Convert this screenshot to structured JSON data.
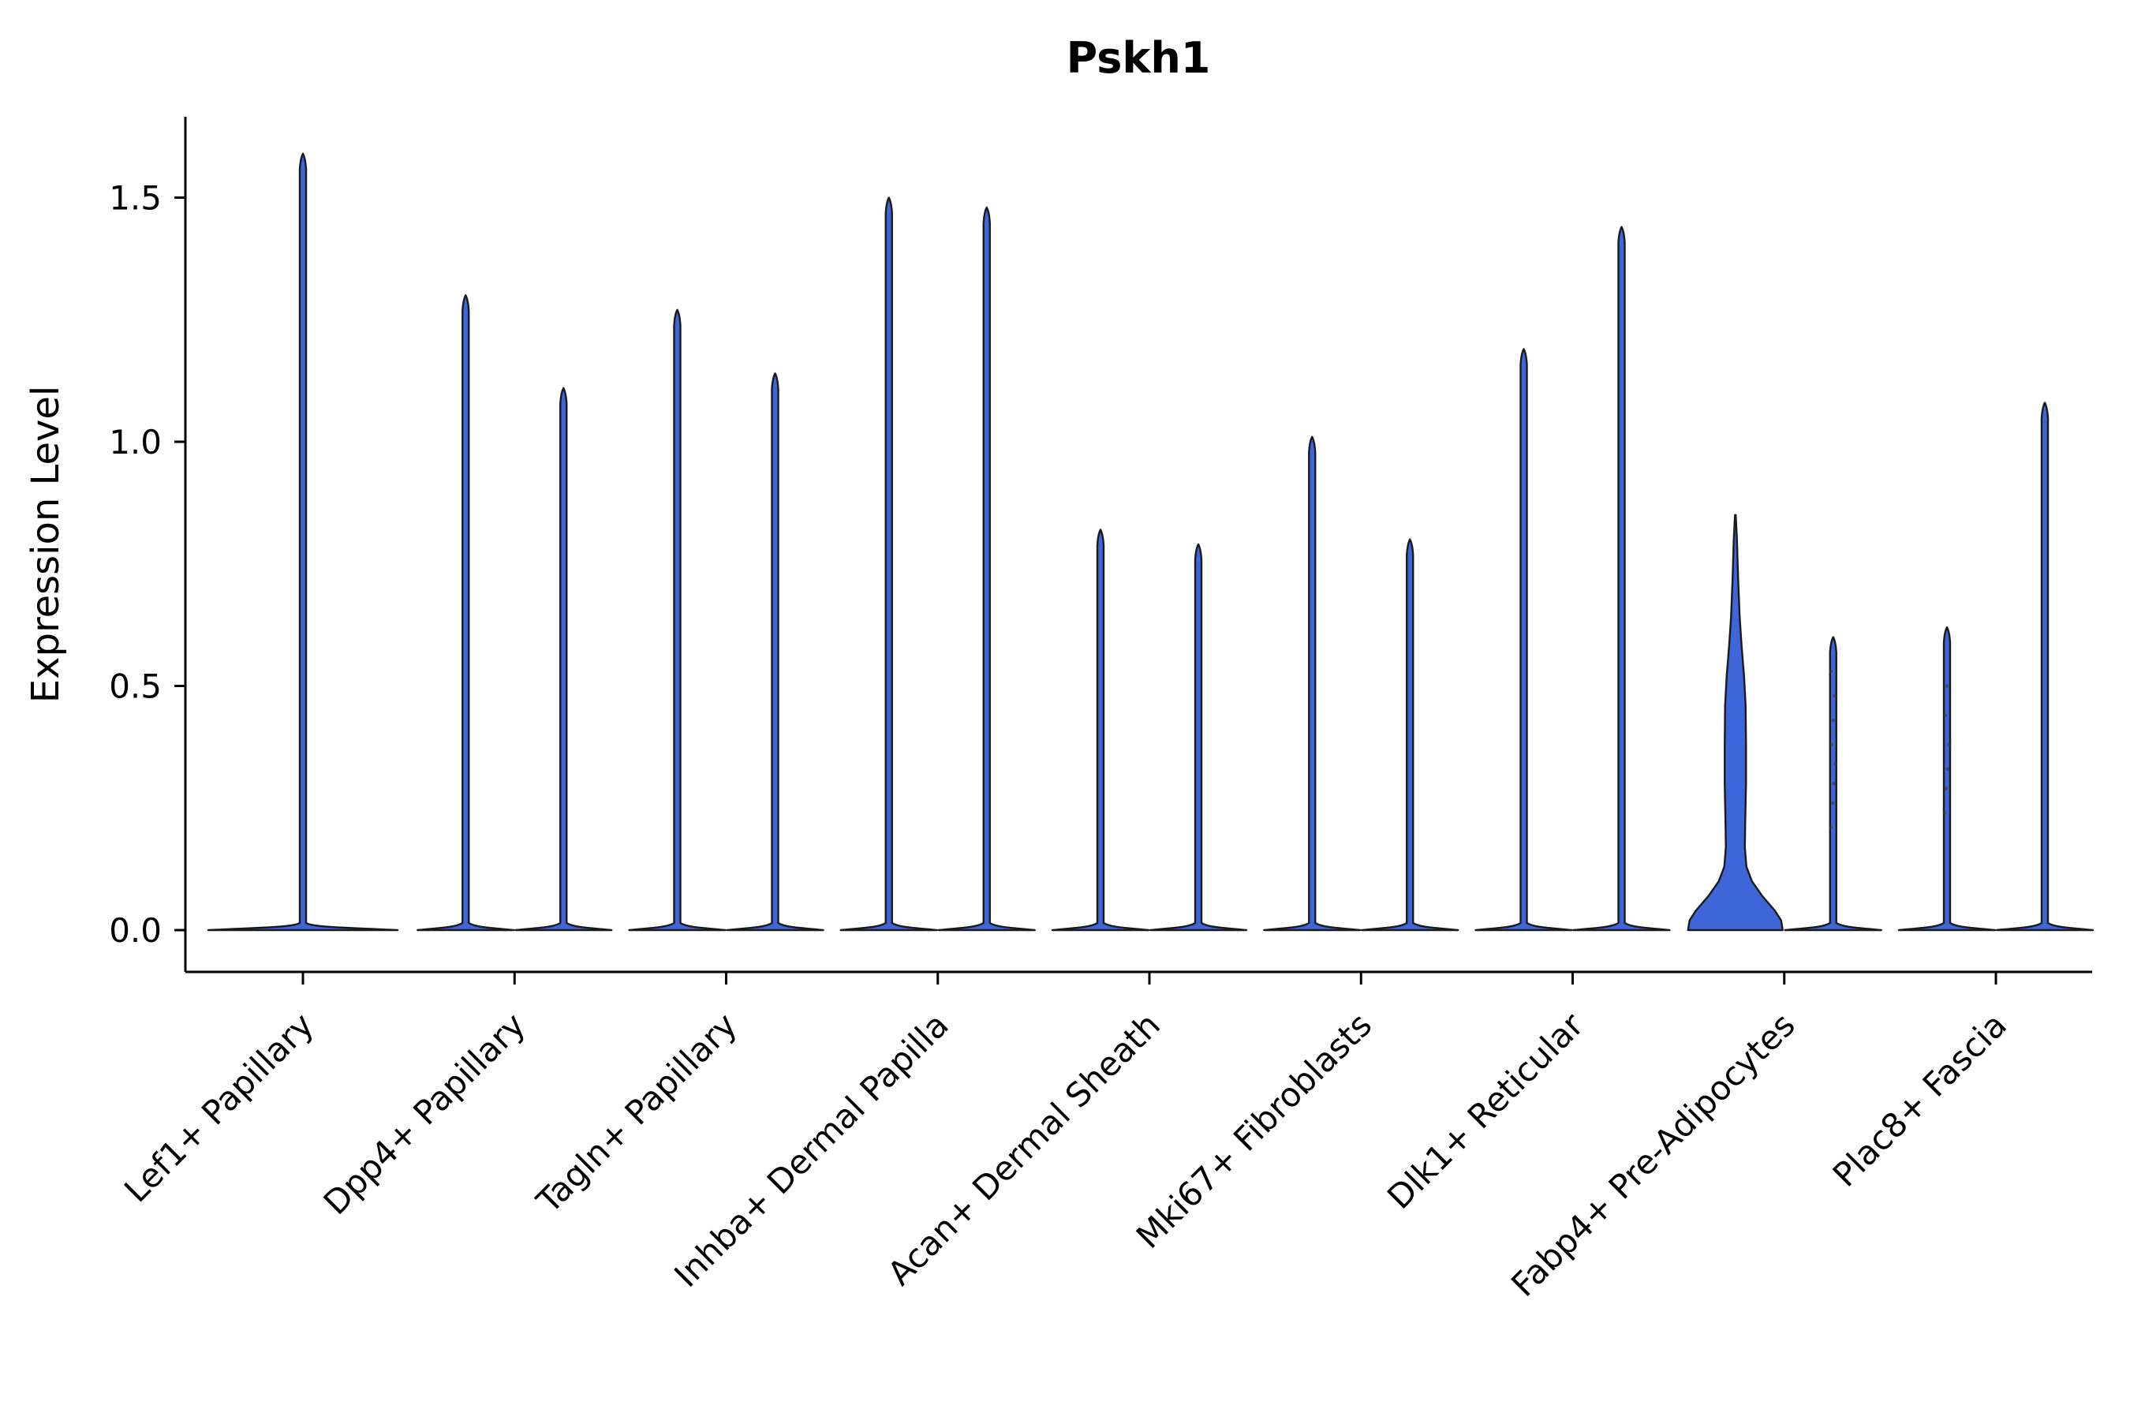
{
  "chart_data": {
    "type": "violin",
    "title": "Pskh1",
    "xlabel": "",
    "ylabel": "Expression Level",
    "yticks": [
      0.0,
      0.5,
      1.0,
      1.5
    ],
    "ylim": [
      -0.09,
      1.67
    ],
    "grid": false,
    "legend": "none",
    "categories": [
      "Lef1+ Papillary",
      "Dpp4+ Papillary",
      "Tagln+ Papillary",
      "Inhba+ Dermal Papilla",
      "Acan+ Dermal Sheath",
      "Mki67+ Fibroblasts",
      "Dlk1+ Reticular",
      "Fabp4+ Pre-Adipocytes",
      "Plac8+ Fascia"
    ],
    "groups": [
      {
        "category": "Lef1+ Papillary",
        "violins": [
          {
            "max": 1.59,
            "shape": "spike",
            "single": true
          }
        ]
      },
      {
        "category": "Dpp4+ Papillary",
        "violins": [
          {
            "max": 1.3,
            "shape": "spike"
          },
          {
            "max": 1.11,
            "shape": "spike"
          }
        ]
      },
      {
        "category": "Tagln+ Papillary",
        "violins": [
          {
            "max": 1.27,
            "shape": "spike"
          },
          {
            "max": 1.14,
            "shape": "spike"
          }
        ]
      },
      {
        "category": "Inhba+ Dermal Papilla",
        "violins": [
          {
            "max": 1.5,
            "shape": "spike"
          },
          {
            "max": 1.48,
            "shape": "spike"
          }
        ]
      },
      {
        "category": "Acan+ Dermal Sheath",
        "violins": [
          {
            "max": 0.82,
            "shape": "spike"
          },
          {
            "max": 0.79,
            "shape": "spike"
          }
        ]
      },
      {
        "category": "Mki67+ Fibroblasts",
        "violins": [
          {
            "max": 1.01,
            "shape": "spike"
          },
          {
            "max": 0.8,
            "shape": "spike"
          }
        ]
      },
      {
        "category": "Dlk1+ Reticular",
        "violins": [
          {
            "max": 1.19,
            "shape": "spike"
          },
          {
            "max": 1.44,
            "shape": "spike"
          }
        ]
      },
      {
        "category": "Fabp4+ Pre-Adipocytes",
        "violins": [
          {
            "max": 0.85,
            "shape": "full"
          },
          {
            "max": 0.6,
            "shape": "spike",
            "dots": [
              0.21,
              0.26,
              0.3,
              0.34,
              0.38,
              0.43,
              0.48,
              0.53
            ]
          }
        ]
      },
      {
        "category": "Plac8+ Fascia",
        "violins": [
          {
            "max": 0.62,
            "shape": "spike",
            "dots": [
              0.24,
              0.29,
              0.33,
              0.38,
              0.44,
              0.5
            ]
          },
          {
            "max": 1.08,
            "shape": "spike"
          }
        ]
      }
    ],
    "full_violin_profile": [
      [
        0.0,
        60
      ],
      [
        0.02,
        58
      ],
      [
        0.04,
        50
      ],
      [
        0.07,
        34
      ],
      [
        0.1,
        21
      ],
      [
        0.13,
        14
      ],
      [
        0.17,
        12
      ],
      [
        0.22,
        12.5
      ],
      [
        0.3,
        13.5
      ],
      [
        0.38,
        13.5
      ],
      [
        0.46,
        13
      ],
      [
        0.52,
        11
      ],
      [
        0.58,
        8
      ],
      [
        0.64,
        5.5
      ],
      [
        0.72,
        3.5
      ],
      [
        0.8,
        2
      ],
      [
        0.85,
        0.5
      ]
    ],
    "colors": {
      "violin_fill": "#3E66D8",
      "outline": "#1a1a1a",
      "axis": "#000000",
      "background": "#ffffff",
      "dot": "#3a3a3a"
    }
  }
}
